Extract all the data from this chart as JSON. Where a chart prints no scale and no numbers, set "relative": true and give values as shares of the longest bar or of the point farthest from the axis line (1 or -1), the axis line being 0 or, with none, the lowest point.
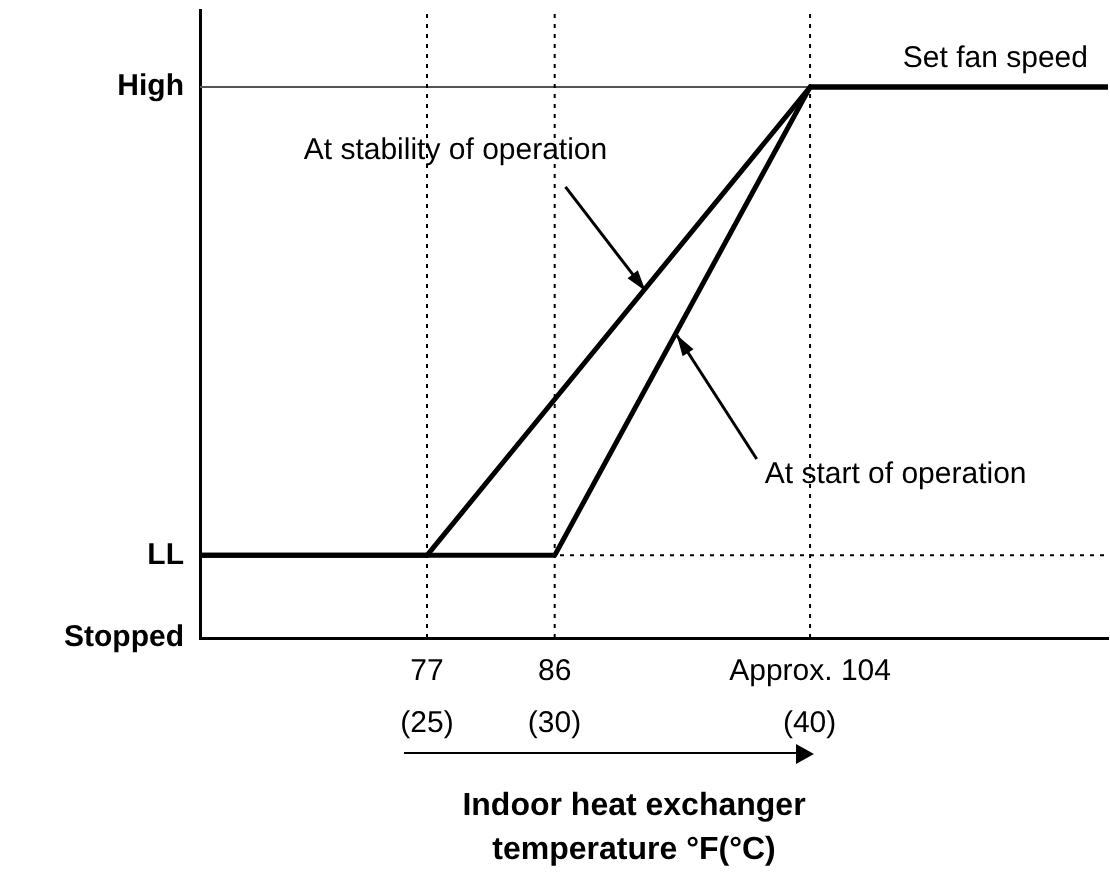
{
  "chart_data": {
    "type": "line",
    "xlabel": "Indoor heat exchanger\ntemperature °F(°C)",
    "relative": true,
    "x": [
      61,
      77,
      104,
      125
    ],
    "series": [
      {
        "color": "#000000",
        "values": [
          0.15,
          0.15,
          1,
          1
        ]
      },
      {
        "color": "#000000",
        "x": [
          61,
          86,
          104,
          125
        ],
        "values": [
          0.15,
          0.15,
          1,
          1
        ]
      }
    ],
    "xlim": [
      61,
      125
    ],
    "xticks": [
      77,
      86,
      {
        "value": 104,
        "label": "Approx. 104"
      }
    ],
    "x2lim": [
      16.1,
      51.7
    ],
    "x2ticks": [
      {
        "value": 25,
        "label": "(25)"
      },
      {
        "value": 30,
        "label": "(30)"
      },
      {
        "value": 40,
        "label": "(40)"
      }
    ],
    "ref_lines": [
      {
        "axis": "y",
        "value": 1,
        "label": "High",
        "line_style": "solid",
        "color": "#555555"
      },
      {
        "axis": "y",
        "value": 0.15,
        "label": "LL",
        "line_style": "dotted",
        "color": "#000000"
      },
      {
        "axis": "x",
        "value": 77,
        "line_style": "dotted",
        "color": "#000000"
      },
      {
        "axis": "x",
        "value": 86,
        "line_style": "dotted",
        "color": "#000000"
      },
      {
        "axis": "x",
        "value": 104,
        "line_style": "dotted",
        "color": "#000000"
      }
    ],
    "annotations": [
      "Set fan speed",
      {
        "text": "At stability of operation",
        "x": 92.4,
        "y": 0.63
      },
      {
        "text": "At start of operation",
        "x": 94.6,
        "y": 0.55
      },
      "Stopped"
    ],
    "grid": false,
    "legend": false,
    "marker": "none",
    "line_style": "solid"
  }
}
